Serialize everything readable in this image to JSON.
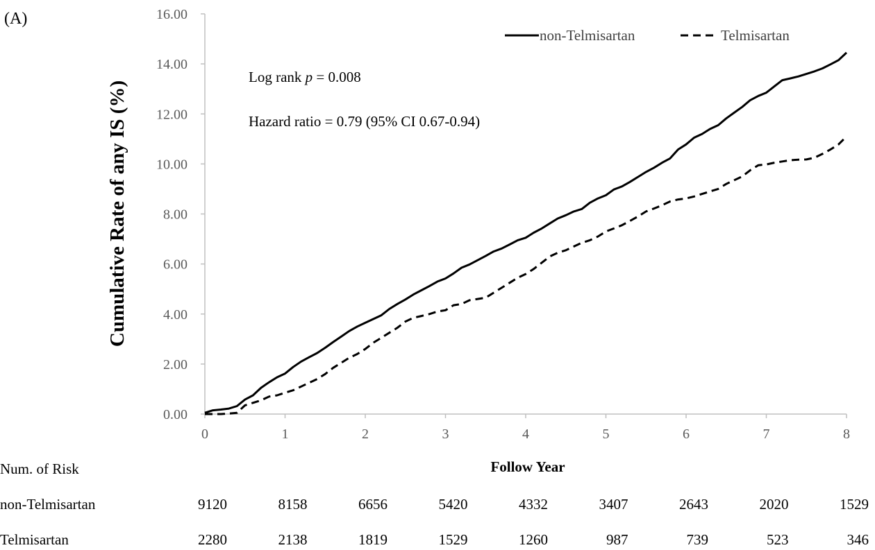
{
  "chart_data": {
    "type": "line",
    "panel_label": "(A)",
    "title": "",
    "ylabel": "Cumulative Rate of any IS (%)",
    "xlabel": "Follow Year",
    "xlim": [
      0,
      8
    ],
    "ylim": [
      0,
      16
    ],
    "x_ticks": [
      "0",
      "1",
      "2",
      "3",
      "4",
      "5",
      "6",
      "7",
      "8"
    ],
    "y_ticks": [
      "0.00",
      "2.00",
      "4.00",
      "6.00",
      "8.00",
      "10.00",
      "12.00",
      "14.00",
      "16.00"
    ],
    "grid": false,
    "legend_position": "top-right",
    "series": [
      {
        "name": "non-Telmisartan",
        "style": "solid",
        "color": "#000000",
        "x": [
          0,
          0.1,
          0.2,
          0.3,
          0.4,
          0.5,
          0.6,
          0.7,
          0.8,
          0.9,
          1.0,
          1.1,
          1.2,
          1.3,
          1.4,
          1.5,
          1.6,
          1.7,
          1.8,
          1.9,
          2.0,
          2.1,
          2.2,
          2.3,
          2.4,
          2.5,
          2.6,
          2.7,
          2.8,
          2.9,
          3.0,
          3.1,
          3.2,
          3.3,
          3.4,
          3.5,
          3.6,
          3.7,
          3.8,
          3.9,
          4.0,
          4.1,
          4.2,
          4.3,
          4.4,
          4.5,
          4.6,
          4.7,
          4.8,
          4.9,
          5.0,
          5.1,
          5.2,
          5.3,
          5.4,
          5.5,
          5.6,
          5.7,
          5.8,
          5.9,
          6.0,
          6.1,
          6.2,
          6.3,
          6.4,
          6.5,
          6.6,
          6.7,
          6.8,
          6.9,
          7.0,
          7.1,
          7.2,
          7.3,
          7.4,
          7.5,
          7.6,
          7.7,
          7.8,
          7.9,
          8.0
        ],
        "y": [
          0.05,
          0.15,
          0.18,
          0.22,
          0.32,
          0.58,
          0.75,
          1.05,
          1.27,
          1.47,
          1.62,
          1.88,
          2.1,
          2.27,
          2.44,
          2.65,
          2.88,
          3.1,
          3.32,
          3.5,
          3.65,
          3.8,
          3.95,
          4.2,
          4.4,
          4.58,
          4.78,
          4.95,
          5.12,
          5.3,
          5.42,
          5.62,
          5.85,
          5.98,
          6.15,
          6.32,
          6.5,
          6.62,
          6.78,
          6.95,
          7.05,
          7.25,
          7.42,
          7.62,
          7.82,
          7.95,
          8.1,
          8.2,
          8.45,
          8.62,
          8.75,
          8.98,
          9.1,
          9.28,
          9.48,
          9.68,
          9.85,
          10.05,
          10.22,
          10.58,
          10.78,
          11.05,
          11.2,
          11.4,
          11.55,
          11.82,
          12.05,
          12.28,
          12.55,
          12.72,
          12.85,
          13.1,
          13.35,
          13.42,
          13.5,
          13.6,
          13.7,
          13.82,
          13.98,
          14.15,
          14.45
        ]
      },
      {
        "name": "Telmisartan",
        "style": "dashed",
        "color": "#000000",
        "x": [
          0,
          0.1,
          0.2,
          0.3,
          0.4,
          0.5,
          0.6,
          0.7,
          0.8,
          0.9,
          1.0,
          1.1,
          1.2,
          1.3,
          1.4,
          1.5,
          1.6,
          1.7,
          1.8,
          1.9,
          2.0,
          2.1,
          2.2,
          2.3,
          2.4,
          2.5,
          2.6,
          2.7,
          2.8,
          2.9,
          3.0,
          3.1,
          3.2,
          3.3,
          3.4,
          3.5,
          3.6,
          3.7,
          3.8,
          3.9,
          4.0,
          4.1,
          4.2,
          4.3,
          4.4,
          4.5,
          4.6,
          4.7,
          4.8,
          4.9,
          5.0,
          5.1,
          5.2,
          5.3,
          5.4,
          5.5,
          5.6,
          5.7,
          5.8,
          5.9,
          6.0,
          6.1,
          6.2,
          6.3,
          6.4,
          6.5,
          6.6,
          6.7,
          6.8,
          6.9,
          7.0,
          7.1,
          7.2,
          7.3,
          7.4,
          7.5,
          7.6,
          7.7,
          7.8,
          7.9,
          8.0
        ],
        "y": [
          0.0,
          0.0,
          0.0,
          0.02,
          0.05,
          0.35,
          0.45,
          0.55,
          0.7,
          0.75,
          0.85,
          0.95,
          1.1,
          1.25,
          1.4,
          1.6,
          1.85,
          2.05,
          2.25,
          2.4,
          2.6,
          2.85,
          3.05,
          3.25,
          3.45,
          3.7,
          3.85,
          3.92,
          4.0,
          4.1,
          4.15,
          4.35,
          4.4,
          4.55,
          4.6,
          4.65,
          4.85,
          5.05,
          5.25,
          5.45,
          5.6,
          5.8,
          6.05,
          6.3,
          6.45,
          6.55,
          6.7,
          6.85,
          6.95,
          7.1,
          7.3,
          7.42,
          7.55,
          7.72,
          7.9,
          8.1,
          8.22,
          8.35,
          8.5,
          8.58,
          8.62,
          8.7,
          8.8,
          8.9,
          9.0,
          9.2,
          9.35,
          9.5,
          9.75,
          9.95,
          9.98,
          10.05,
          10.1,
          10.15,
          10.17,
          10.18,
          10.25,
          10.4,
          10.58,
          10.78,
          11.1
        ]
      }
    ],
    "annotations": {
      "logrank_prefix": "Log rank ",
      "logrank_p": "p",
      "logrank_value": " = 0.008",
      "hazard": "Hazard ratio = 0.79 (95% CI 0.67-0.94)"
    },
    "risk_table": {
      "header": "Num. of Risk",
      "rows": [
        {
          "label": "non-Telmisartan",
          "values": [
            "9120",
            "8158",
            "6656",
            "5420",
            "4332",
            "3407",
            "2643",
            "2020",
            "1529"
          ]
        },
        {
          "label": "Telmisartan",
          "values": [
            "2280",
            "2138",
            "1819",
            "1529",
            "1260",
            "987",
            "739",
            "523",
            "346"
          ]
        }
      ]
    }
  }
}
